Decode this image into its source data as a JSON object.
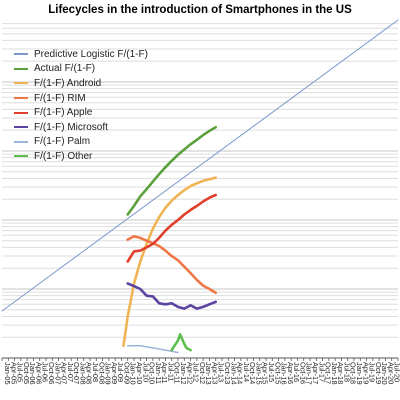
{
  "chart_data": {
    "type": "line",
    "title": "Lifecycles in the introduction of Smartphones in the US",
    "xlabel": "",
    "ylabel": "",
    "y_scale": "log",
    "grid": true,
    "legend_position": "top-left",
    "x_ticks": [
      "Jan-05",
      "Apr-05",
      "Jul-05",
      "Oct-05",
      "Jan-06",
      "Apr-06",
      "Jul-06",
      "Oct-06",
      "Jan-07",
      "Apr-07",
      "Jul-07",
      "Oct-07",
      "Jan-08",
      "Apr-08",
      "Jul-08",
      "Oct-08",
      "Jan-09",
      "Apr-09",
      "Jul-09",
      "Oct-09",
      "Jan-10",
      "Apr-10",
      "Jul-10",
      "Oct-10",
      "Jan-11",
      "Apr-11",
      "Jul-11",
      "Oct-11",
      "Jan-12",
      "Apr-12",
      "Jul-12",
      "Oct-12",
      "Jan-13",
      "Apr-13",
      "Jul-13",
      "Oct-13",
      "Jan-14",
      "Apr-14",
      "Jul-14",
      "Oct-14",
      "Jan-15",
      "Apr-15",
      "Jul-15",
      "Oct-15",
      "Jan-16",
      "Apr-16",
      "Jul-16",
      "Oct-16",
      "Jan-17",
      "Apr-17",
      "Jul-17",
      "Oct-17",
      "Jan-18",
      "Apr-18",
      "Jul-18",
      "Oct-18",
      "Jan-19",
      "Apr-19",
      "Jul-19",
      "Oct-19",
      "Jan-20",
      "Apr-20",
      "Jul-20",
      "Oct-20"
    ],
    "series": [
      {
        "name": "Predictive Logistic F/(1-F)",
        "color": "#7b98cc",
        "x": [
          "Jan-05",
          "Oct-20"
        ],
        "y": [
          0.0048,
          79
        ]
      },
      {
        "name": "Actual F/(1-F)",
        "color": "#5aa03c",
        "x": [
          "Jan-10",
          "Apr-10",
          "Jul-10",
          "Oct-10",
          "Jan-11",
          "Apr-11",
          "Jul-11",
          "Oct-11",
          "Jan-12",
          "Apr-12",
          "Jul-12",
          "Oct-12",
          "Jan-13",
          "Apr-13",
          "Jul-13"
        ],
        "y": [
          0.12,
          0.16,
          0.22,
          0.28,
          0.36,
          0.46,
          0.58,
          0.72,
          0.88,
          1.05,
          1.25,
          1.45,
          1.7,
          1.95,
          2.2
        ]
      },
      {
        "name": "F/(1-F) Android",
        "color": "#f0b454",
        "x": [
          "Nov-09",
          "Jan-10",
          "Apr-10",
          "Jul-10",
          "Oct-10",
          "Jan-11",
          "Apr-11",
          "Jul-11",
          "Oct-11",
          "Jan-12",
          "Apr-12",
          "Jul-12",
          "Oct-12",
          "Jan-13",
          "Apr-13",
          "Jul-13"
        ],
        "y": [
          0.0015,
          0.004,
          0.012,
          0.025,
          0.045,
          0.075,
          0.11,
          0.15,
          0.19,
          0.23,
          0.27,
          0.31,
          0.34,
          0.37,
          0.39,
          0.41
        ]
      },
      {
        "name": "F/(1-F) RIM",
        "color": "#ef7746",
        "x": [
          "Jan-10",
          "Apr-10",
          "Jul-10",
          "Oct-10",
          "Jan-11",
          "Apr-11",
          "Jul-11",
          "Oct-11",
          "Jan-12",
          "Apr-12",
          "Jul-12",
          "Oct-12",
          "Jan-13",
          "Apr-13",
          "Jul-13"
        ],
        "y": [
          0.052,
          0.058,
          0.055,
          0.05,
          0.046,
          0.042,
          0.036,
          0.03,
          0.026,
          0.021,
          0.017,
          0.0135,
          0.0112,
          0.01,
          0.0088
        ]
      },
      {
        "name": "F/(1-F) Apple",
        "color": "#e03f2c",
        "x": [
          "Jan-10",
          "Apr-10",
          "Jul-10",
          "Oct-10",
          "Jan-11",
          "Apr-11",
          "Jul-11",
          "Oct-11",
          "Jan-12",
          "Apr-12",
          "Jul-12",
          "Oct-12",
          "Jan-13",
          "Apr-13",
          "Jul-13"
        ],
        "y": [
          0.025,
          0.035,
          0.036,
          0.04,
          0.045,
          0.055,
          0.07,
          0.085,
          0.1,
          0.12,
          0.14,
          0.16,
          0.185,
          0.21,
          0.23
        ]
      },
      {
        "name": "F/(1-F) Microsoft",
        "color": "#5b43a1",
        "x": [
          "Jan-10",
          "Apr-10",
          "Jul-10",
          "Oct-10",
          "Jan-11",
          "Apr-11",
          "Jul-11",
          "Oct-11",
          "Jan-12",
          "Apr-12",
          "Jul-12",
          "Oct-12",
          "Jan-13",
          "Apr-13",
          "Jul-13"
        ],
        "y": [
          0.012,
          0.011,
          0.01,
          0.008,
          0.0078,
          0.0062,
          0.006,
          0.0062,
          0.0055,
          0.0052,
          0.0058,
          0.0052,
          0.0055,
          0.006,
          0.0065
        ]
      },
      {
        "name": "F/(1-F) Palm",
        "color": "#9db5dc",
        "x": [
          "Jan-10",
          "Jul-10",
          "Jan-11",
          "Jul-11",
          "Jan-12"
        ],
        "y": [
          0.0015,
          0.0015,
          0.0014,
          0.0013,
          0.0012
        ]
      },
      {
        "name": "F/(1-F) Other",
        "color": "#5cbf4b",
        "x": [
          "Oct-11",
          "Jan-12",
          "Feb-12",
          "Apr-12",
          "May-12",
          "Jul-12"
        ],
        "y": [
          0.0013,
          0.0018,
          0.0022,
          0.0016,
          0.0014,
          0.0013
        ]
      }
    ]
  }
}
